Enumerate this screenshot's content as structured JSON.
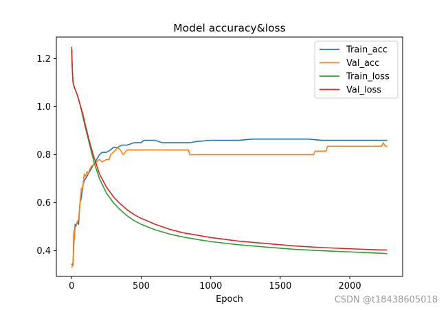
{
  "chart_data": {
    "type": "line",
    "title": "Model accuracy&loss",
    "xlabel": "Epoch",
    "ylabel": "",
    "xlim": [
      -110,
      2380
    ],
    "ylim": [
      0.293,
      1.29
    ],
    "xticks": [
      0,
      500,
      1000,
      1500,
      2000
    ],
    "xtick_labels": [
      "0",
      "500",
      "1000",
      "1500",
      "2000"
    ],
    "yticks": [
      0.4,
      0.6,
      0.8,
      1.0,
      1.2
    ],
    "ytick_labels": [
      "0.4",
      "0.6",
      "0.8",
      "1.0",
      "1.2"
    ],
    "grid": false,
    "legend_position": "top-right",
    "series": [
      {
        "name": "Train_acc",
        "color": "#1f77b4",
        "x": [
          0,
          10,
          20,
          25,
          30,
          40,
          50,
          60,
          70,
          80,
          90,
          100,
          120,
          140,
          160,
          180,
          200,
          220,
          250,
          280,
          300,
          330,
          360,
          400,
          450,
          500,
          520,
          600,
          650,
          700,
          800,
          850,
          900,
          1000,
          1100,
          1200,
          1300,
          1400,
          1500,
          1600,
          1700,
          1800,
          1900,
          2000,
          2100,
          2200,
          2270
        ],
        "y": [
          0.34,
          0.35,
          0.48,
          0.51,
          0.5,
          0.52,
          0.51,
          0.6,
          0.62,
          0.67,
          0.69,
          0.7,
          0.72,
          0.74,
          0.76,
          0.78,
          0.8,
          0.81,
          0.81,
          0.82,
          0.83,
          0.83,
          0.84,
          0.84,
          0.85,
          0.85,
          0.86,
          0.86,
          0.85,
          0.85,
          0.85,
          0.85,
          0.855,
          0.86,
          0.86,
          0.86,
          0.865,
          0.865,
          0.865,
          0.865,
          0.865,
          0.86,
          0.86,
          0.86,
          0.86,
          0.86,
          0.86
        ]
      },
      {
        "name": "Val_acc",
        "color": "#ff7f0e",
        "x": [
          0,
          10,
          15,
          20,
          25,
          30,
          40,
          50,
          60,
          70,
          80,
          90,
          100,
          110,
          120,
          130,
          140,
          160,
          180,
          200,
          220,
          250,
          270,
          280,
          300,
          330,
          350,
          370,
          400,
          500,
          600,
          700,
          800,
          840,
          850,
          900,
          1000,
          1100,
          1200,
          1300,
          1400,
          1500,
          1600,
          1700,
          1740,
          1750,
          1800,
          1830,
          1840,
          1900,
          2000,
          2100,
          2200,
          2230,
          2240,
          2255,
          2270
        ],
        "y": [
          0.33,
          0.34,
          0.48,
          0.45,
          0.5,
          0.5,
          0.52,
          0.53,
          0.6,
          0.66,
          0.66,
          0.72,
          0.71,
          0.73,
          0.72,
          0.74,
          0.75,
          0.76,
          0.77,
          0.78,
          0.77,
          0.78,
          0.78,
          0.8,
          0.81,
          0.83,
          0.82,
          0.8,
          0.82,
          0.82,
          0.82,
          0.82,
          0.82,
          0.82,
          0.8,
          0.8,
          0.8,
          0.8,
          0.8,
          0.8,
          0.8,
          0.8,
          0.8,
          0.8,
          0.8,
          0.815,
          0.815,
          0.815,
          0.835,
          0.835,
          0.835,
          0.835,
          0.835,
          0.835,
          0.85,
          0.835,
          0.835
        ]
      },
      {
        "name": "Train_loss",
        "color": "#2ca02c",
        "x": [
          0,
          5,
          10,
          20,
          40,
          60,
          80,
          100,
          130,
          160,
          200,
          250,
          300,
          350,
          400,
          450,
          500,
          600,
          700,
          800,
          900,
          1000,
          1200,
          1400,
          1600,
          1800,
          2000,
          2200,
          2270
        ],
        "y": [
          1.25,
          1.15,
          1.1,
          1.08,
          1.05,
          1.01,
          0.96,
          0.91,
          0.84,
          0.77,
          0.7,
          0.64,
          0.6,
          0.57,
          0.545,
          0.525,
          0.51,
          0.487,
          0.47,
          0.457,
          0.447,
          0.438,
          0.425,
          0.415,
          0.406,
          0.4,
          0.395,
          0.39,
          0.388
        ]
      },
      {
        "name": "Val_loss",
        "color": "#d62728",
        "x": [
          0,
          5,
          10,
          20,
          40,
          60,
          80,
          100,
          130,
          160,
          200,
          250,
          300,
          350,
          400,
          450,
          500,
          600,
          700,
          800,
          900,
          1000,
          1200,
          1400,
          1600,
          1800,
          2000,
          2200,
          2270
        ],
        "y": [
          1.24,
          1.15,
          1.1,
          1.08,
          1.05,
          1.01,
          0.97,
          0.92,
          0.85,
          0.79,
          0.72,
          0.665,
          0.625,
          0.595,
          0.57,
          0.55,
          0.535,
          0.51,
          0.49,
          0.475,
          0.465,
          0.455,
          0.44,
          0.43,
          0.42,
          0.413,
          0.408,
          0.404,
          0.403
        ]
      }
    ]
  },
  "watermark": "CSDN @t18438605018"
}
